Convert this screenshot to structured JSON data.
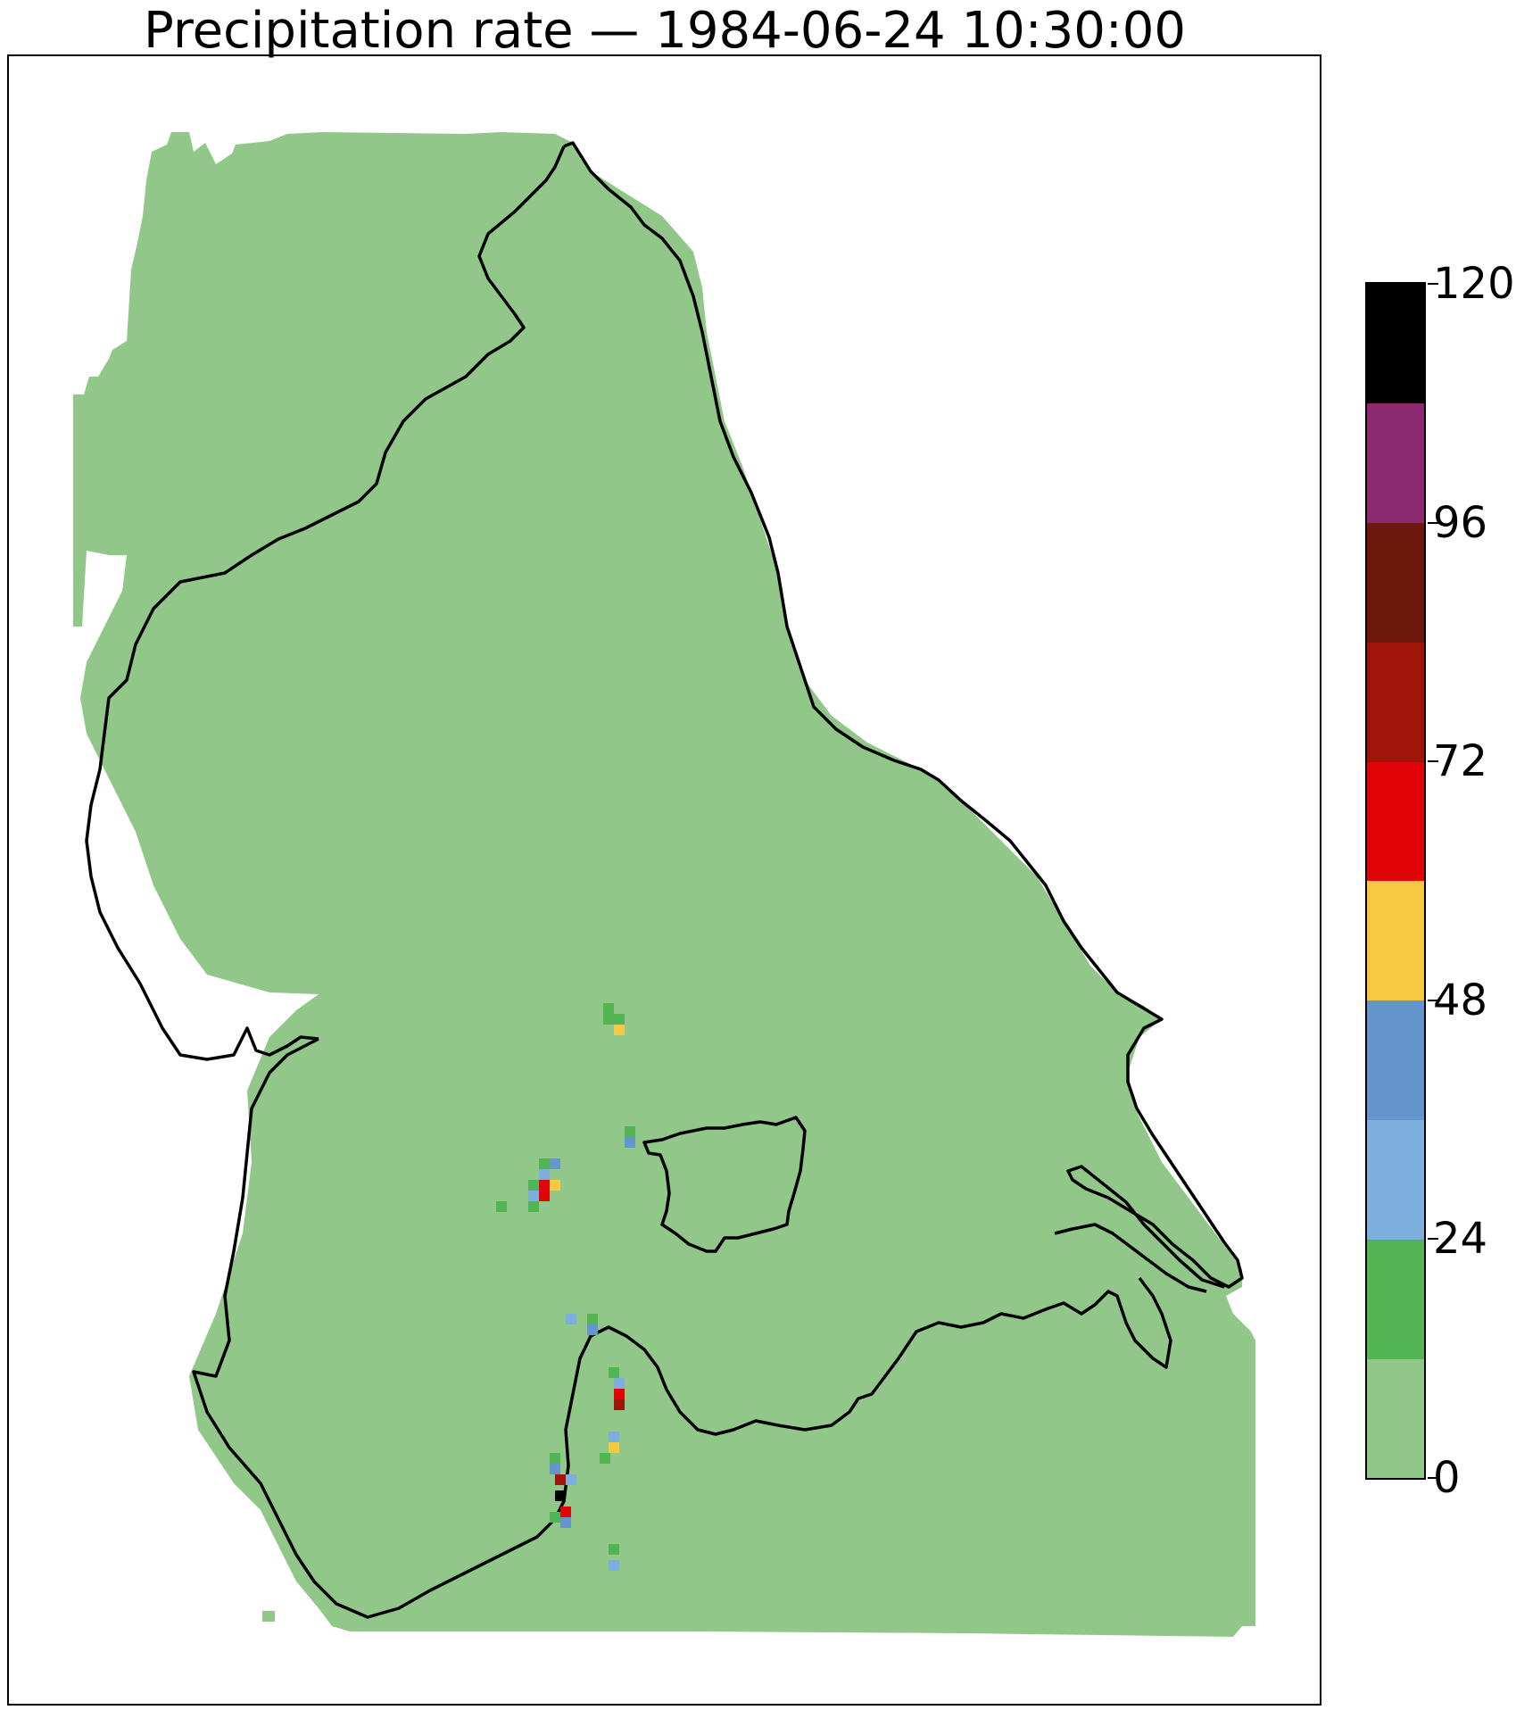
{
  "title": "Precipitation rate — 1984-06-24 10:30:00",
  "colorbar": {
    "min": 0,
    "max": 120,
    "ticks": [
      0,
      24,
      48,
      72,
      96,
      120
    ],
    "tick_labels": [
      "0",
      "24",
      "48",
      "72",
      "96",
      "120"
    ],
    "colors": [
      "#91c788",
      "#52b452",
      "#7dafdc",
      "#6495cd",
      "#f7c942",
      "#e1050a",
      "#a0140a",
      "#6e180c",
      "#8b2a6e",
      "#000000"
    ]
  },
  "map": {
    "background_fill": "#91c788",
    "outline_color": "#000000",
    "cells": [
      {
        "area": "central",
        "value": 18
      },
      {
        "area": "central",
        "value": 18
      },
      {
        "area": "central",
        "value": 18
      },
      {
        "area": "central",
        "value": 54
      },
      {
        "area": "central-east",
        "value": 18
      },
      {
        "area": "central-east",
        "value": 42
      },
      {
        "area": "west-central",
        "value": 18
      },
      {
        "area": "west-central",
        "value": 18
      },
      {
        "area": "west-central",
        "value": 42
      },
      {
        "area": "west-central",
        "value": 30
      },
      {
        "area": "west-central",
        "value": 66
      },
      {
        "area": "west-central",
        "value": 54
      },
      {
        "area": "west-central",
        "value": 66
      },
      {
        "area": "west-central",
        "value": 18
      },
      {
        "area": "west-central",
        "value": 30
      },
      {
        "area": "west-central",
        "value": 18
      },
      {
        "area": "south",
        "value": 30
      },
      {
        "area": "south",
        "value": 18
      },
      {
        "area": "south",
        "value": 42
      },
      {
        "area": "south",
        "value": 18
      },
      {
        "area": "south",
        "value": 30
      },
      {
        "area": "south",
        "value": 66
      },
      {
        "area": "south",
        "value": 78
      },
      {
        "area": "south",
        "value": 30
      },
      {
        "area": "south",
        "value": 54
      },
      {
        "area": "south",
        "value": 18
      },
      {
        "area": "south-west",
        "value": 18
      },
      {
        "area": "south-west",
        "value": 42
      },
      {
        "area": "south-west",
        "value": 78
      },
      {
        "area": "south-west",
        "value": 114
      },
      {
        "area": "south-west",
        "value": 30
      },
      {
        "area": "south-west",
        "value": 60
      },
      {
        "area": "south-west",
        "value": 42
      },
      {
        "area": "south-west",
        "value": 18
      },
      {
        "area": "far-south",
        "value": 18
      },
      {
        "area": "far-south",
        "value": 30
      }
    ]
  }
}
